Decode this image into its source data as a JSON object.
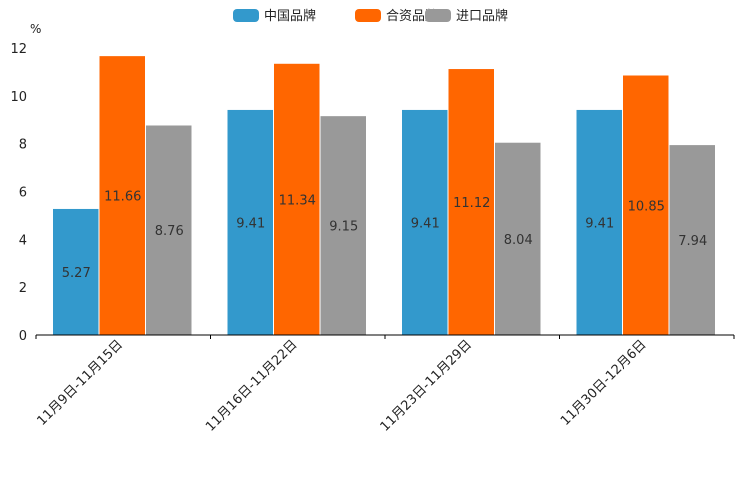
{
  "chart_data": {
    "type": "bar",
    "title": "",
    "xlabel": "",
    "ylabel": "%",
    "ylim": [
      0,
      12
    ],
    "yticks": [
      0,
      2,
      4,
      6,
      8,
      10,
      12
    ],
    "legend_position": "top-center",
    "grid": false,
    "categories": [
      "11月9日-11月15日",
      "11月16日-11月22日",
      "11月23日-11月29日",
      "11月30日-12月6日"
    ],
    "series": [
      {
        "name": "中国品牌",
        "color": "#3399cc",
        "values": [
          5.27,
          9.41,
          9.41,
          9.41
        ]
      },
      {
        "name": "合资品牌",
        "color": "#ff6600",
        "values": [
          11.66,
          11.34,
          11.12,
          10.85
        ]
      },
      {
        "name": "进口品牌",
        "color": "#999999",
        "values": [
          8.76,
          9.15,
          8.04,
          7.94
        ]
      }
    ]
  }
}
